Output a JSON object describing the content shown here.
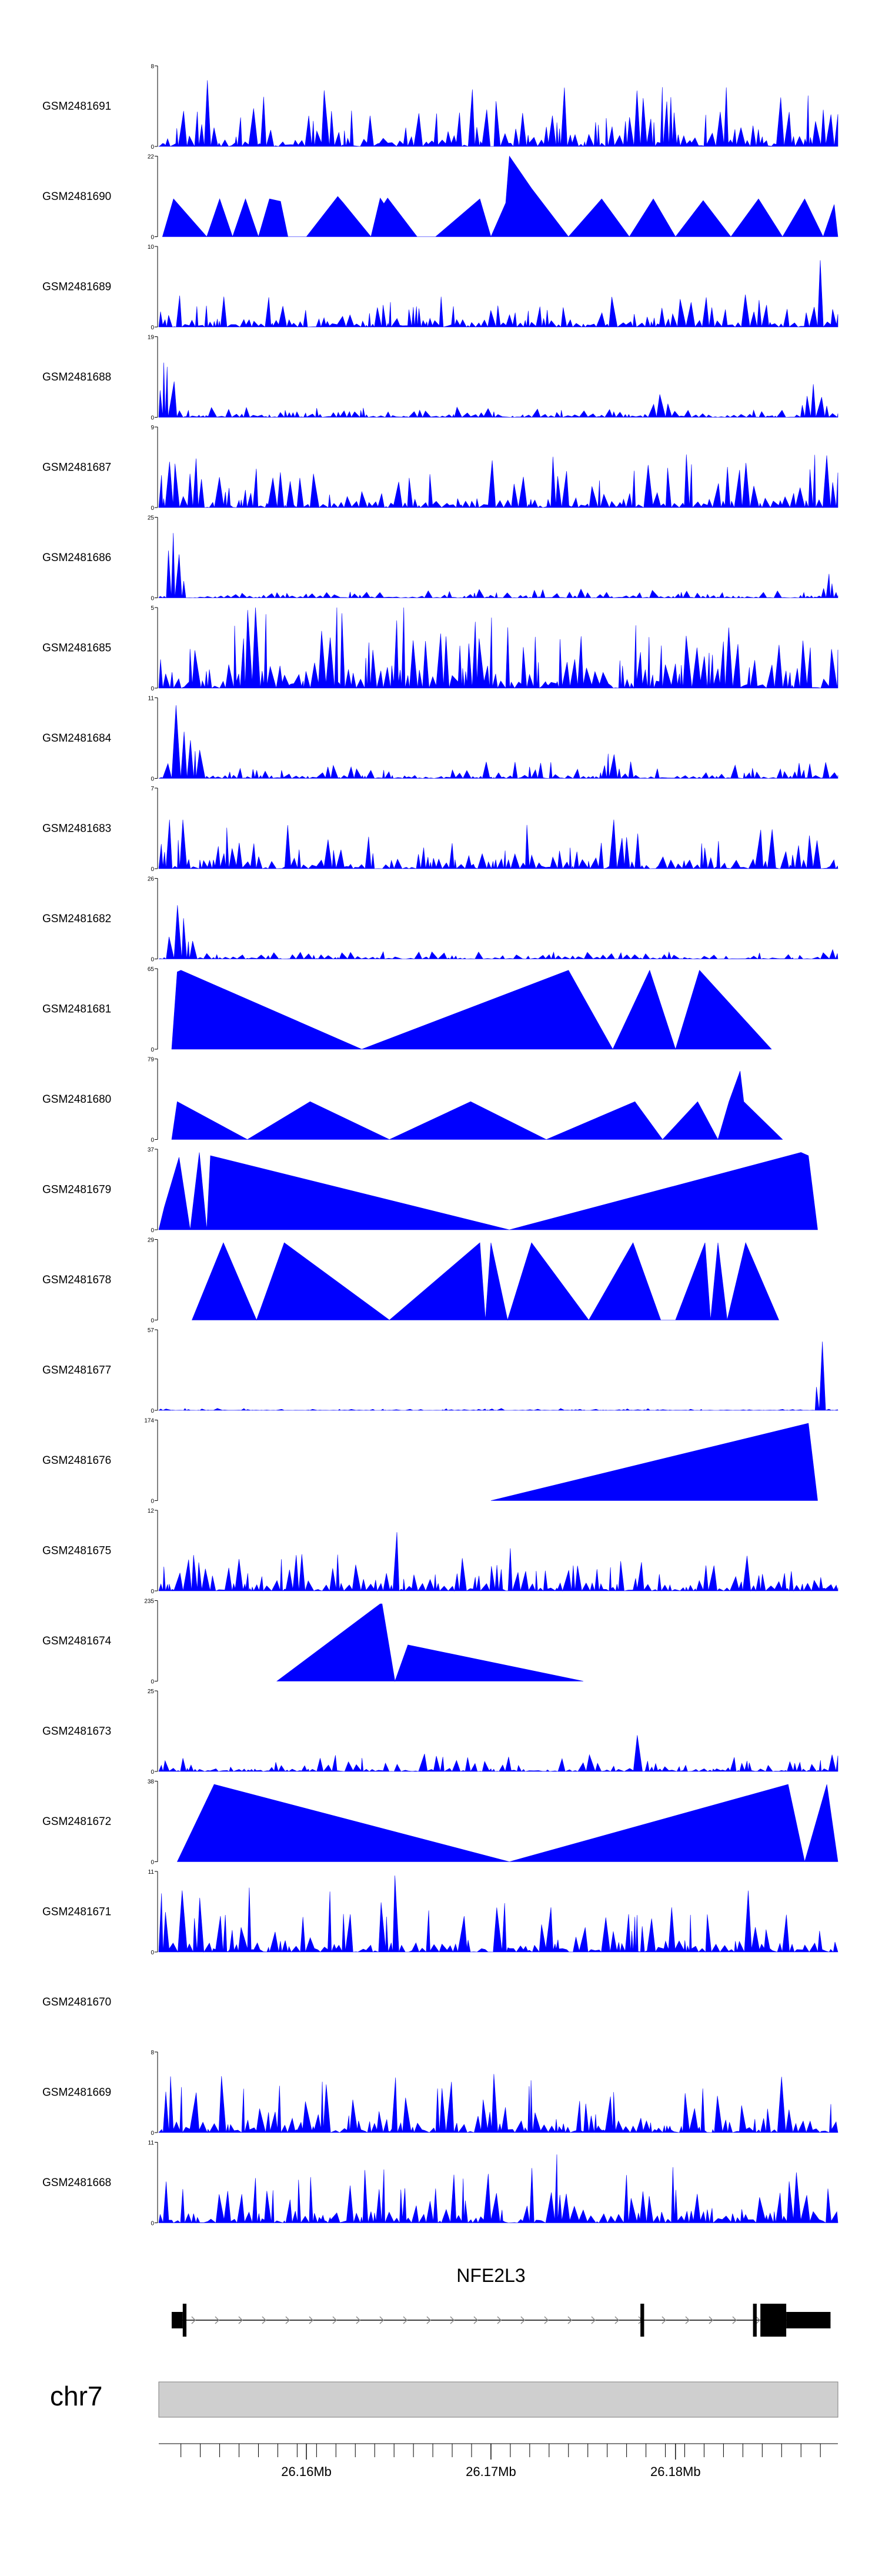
{
  "colors": {
    "signal": "#0000ff",
    "axis": "#000000",
    "gene": "#000000",
    "ideogram_fill": "#cfcfcf",
    "ideogram_stroke": "#7f7f7f",
    "intron_arrow": "#8a8a8a"
  },
  "chart_data": {
    "type": "area",
    "xlim": [
      26152000,
      26188800
    ],
    "tracks": [
      {
        "name": "GSM2481691",
        "ymax": 8,
        "ytick_top": "8",
        "ytick_bottom": "0",
        "pattern": "noise",
        "base": 0.15,
        "amp": 0.6,
        "seed": 11,
        "peaks": [
          [
            26153200,
            0.85,
            300
          ],
          [
            26154600,
            0.95,
            250
          ],
          [
            26178000,
            0.95,
            300
          ],
          [
            26187800,
            0.9,
            300
          ]
        ]
      },
      {
        "name": "GSM2481690",
        "ymax": 22,
        "ytick_top": "22",
        "ytick_bottom": "0",
        "pattern": "points",
        "points": [
          [
            26152200,
            0
          ],
          [
            26152800,
            0.47
          ],
          [
            26154600,
            0
          ],
          [
            26155300,
            0.47
          ],
          [
            26156000,
            0
          ],
          [
            26156700,
            0.47
          ],
          [
            26157400,
            0
          ],
          [
            26158000,
            0.47
          ],
          [
            26158600,
            0.44
          ],
          [
            26159000,
            0
          ],
          [
            26160000,
            0
          ],
          [
            26161700,
            0.5
          ],
          [
            26162000,
            0.42
          ],
          [
            26163500,
            0
          ],
          [
            26164000,
            0.48
          ],
          [
            26164200,
            0.41
          ],
          [
            26164400,
            0.48
          ],
          [
            26166000,
            0
          ],
          [
            26167000,
            0
          ],
          [
            26169400,
            0.47
          ],
          [
            26170000,
            0
          ],
          [
            26170800,
            0.42
          ],
          [
            26171000,
            1.0
          ],
          [
            26172200,
            0.6
          ],
          [
            26174200,
            0
          ],
          [
            26176000,
            0.47
          ],
          [
            26177500,
            0
          ],
          [
            26178800,
            0.47
          ],
          [
            26180000,
            0
          ],
          [
            26181500,
            0.45
          ],
          [
            26183000,
            0
          ],
          [
            26184500,
            0.47
          ],
          [
            26185800,
            0
          ],
          [
            26187000,
            0.47
          ],
          [
            26188000,
            0
          ],
          [
            26188600,
            0.4
          ],
          [
            26188800,
            0
          ]
        ]
      },
      {
        "name": "GSM2481689",
        "ymax": 10,
        "ytick_top": "10",
        "ytick_bottom": "0",
        "pattern": "noise",
        "base": 0.1,
        "amp": 0.35,
        "seed": 23,
        "peaks": [
          [
            26187900,
            0.97,
            300
          ],
          [
            26188400,
            0.5,
            200
          ]
        ]
      },
      {
        "name": "GSM2481688",
        "ymax": 19,
        "ytick_top": "19",
        "ytick_bottom": "0",
        "pattern": "noise",
        "base": 0.04,
        "amp": 0.1,
        "seed": 31,
        "peaks": [
          [
            26152350,
            0.75,
            500
          ],
          [
            26152800,
            0.45,
            300
          ],
          [
            26179200,
            0.25,
            900
          ],
          [
            26187500,
            0.4,
            1000
          ]
        ]
      },
      {
        "name": "GSM2481687",
        "ymax": 9,
        "ytick_top": "9",
        "ytick_bottom": "0",
        "pattern": "noise",
        "base": 0.12,
        "amp": 0.55,
        "seed": 41,
        "peaks": [
          [
            26152700,
            0.8,
            350
          ]
        ]
      },
      {
        "name": "GSM2481686",
        "ymax": 25,
        "ytick_top": "25",
        "ytick_bottom": "0",
        "pattern": "noise",
        "base": 0.03,
        "amp": 0.08,
        "seed": 53,
        "peaks": [
          [
            26152700,
            0.97,
            400
          ],
          [
            26153100,
            0.5,
            400
          ],
          [
            26188300,
            0.3,
            400
          ]
        ]
      },
      {
        "name": "GSM2481685",
        "ymax": 5,
        "ytick_top": "5",
        "ytick_bottom": "0",
        "pattern": "noise",
        "base": 0.3,
        "amp": 0.75,
        "seed": 67,
        "peaks": [
          [
            26170000,
            0.95,
            250
          ],
          [
            26186800,
            0.95,
            250
          ]
        ]
      },
      {
        "name": "GSM2481684",
        "ymax": 11,
        "ytick_top": "11",
        "ytick_bottom": "0",
        "pattern": "noise",
        "base": 0.04,
        "amp": 0.18,
        "seed": 71,
        "peaks": [
          [
            26152900,
            0.95,
            500
          ],
          [
            26153500,
            0.75,
            500
          ],
          [
            26154100,
            0.55,
            300
          ],
          [
            26176500,
            0.35,
            600
          ],
          [
            26188300,
            0.3,
            400
          ]
        ]
      },
      {
        "name": "GSM2481683",
        "ymax": 7,
        "ytick_top": "7",
        "ytick_bottom": "0",
        "pattern": "noise",
        "base": 0.12,
        "amp": 0.5,
        "seed": 83,
        "peaks": [
          [
            26153400,
            0.95,
            250
          ]
        ]
      },
      {
        "name": "GSM2481682",
        "ymax": 26,
        "ytick_top": "26",
        "ytick_bottom": "0",
        "pattern": "noise",
        "base": 0.02,
        "amp": 0.07,
        "seed": 97,
        "peaks": [
          [
            26152900,
            0.85,
            500
          ],
          [
            26153300,
            0.55,
            500
          ],
          [
            26153800,
            0.2,
            400
          ],
          [
            26188300,
            0.28,
            350
          ]
        ]
      },
      {
        "name": "GSM2481681",
        "ymax": 65,
        "ytick_top": "65",
        "ytick_bottom": "0",
        "pattern": "points",
        "points": [
          [
            26152700,
            0
          ],
          [
            26153000,
            0.96
          ],
          [
            26153200,
            0.98
          ],
          [
            26163000,
            0
          ],
          [
            26174200,
            0.98
          ],
          [
            26176600,
            0
          ],
          [
            26178600,
            0.98
          ],
          [
            26180000,
            0
          ],
          [
            26181300,
            0.98
          ],
          [
            26185200,
            0
          ]
        ]
      },
      {
        "name": "GSM2481680",
        "ymax": 79,
        "ytick_top": "79",
        "ytick_bottom": "0",
        "pattern": "points",
        "points": [
          [
            26152700,
            0
          ],
          [
            26153000,
            0.47
          ],
          [
            26156800,
            0
          ],
          [
            26160200,
            0.47
          ],
          [
            26164500,
            0
          ],
          [
            26168900,
            0.47
          ],
          [
            26173000,
            0
          ],
          [
            26177800,
            0.47
          ],
          [
            26179300,
            0
          ],
          [
            26181200,
            0.47
          ],
          [
            26182300,
            0
          ],
          [
            26182900,
            0.47
          ],
          [
            26183500,
            0.85
          ],
          [
            26183700,
            0.47
          ],
          [
            26185800,
            0
          ]
        ]
      },
      {
        "name": "GSM2481679",
        "ymax": 37,
        "ytick_top": "37",
        "ytick_bottom": "0",
        "pattern": "points",
        "points": [
          [
            26152000,
            0
          ],
          [
            26152300,
            0.28
          ],
          [
            26153100,
            0.9
          ],
          [
            26153700,
            0
          ],
          [
            26154200,
            0.96
          ],
          [
            26154600,
            0
          ],
          [
            26154800,
            0.92
          ],
          [
            26171000,
            0
          ],
          [
            26186800,
            0.96
          ],
          [
            26187200,
            0.92
          ],
          [
            26187700,
            0
          ]
        ]
      },
      {
        "name": "GSM2481678",
        "ymax": 29,
        "ytick_top": "29",
        "ytick_bottom": "0",
        "pattern": "points",
        "points": [
          [
            26153800,
            0
          ],
          [
            26155500,
            0.96
          ],
          [
            26157300,
            0
          ],
          [
            26158800,
            0.96
          ],
          [
            26164500,
            0
          ],
          [
            26169400,
            0.96
          ],
          [
            26169700,
            0
          ],
          [
            26170000,
            0.96
          ],
          [
            26170900,
            0
          ],
          [
            26172200,
            0.96
          ],
          [
            26175300,
            0
          ],
          [
            26177700,
            0.96
          ],
          [
            26179200,
            0
          ],
          [
            26180000,
            0
          ],
          [
            26181600,
            0.96
          ],
          [
            26181900,
            0
          ],
          [
            26182300,
            0.96
          ],
          [
            26182800,
            0
          ],
          [
            26183800,
            0.96
          ],
          [
            26185600,
            0
          ]
        ]
      },
      {
        "name": "GSM2481677",
        "ymax": 57,
        "ytick_top": "57",
        "ytick_bottom": "0",
        "pattern": "noise",
        "base": 0.005,
        "amp": 0.02,
        "seed": 101,
        "peaks": [
          [
            26188000,
            0.95,
            300
          ],
          [
            26187800,
            0.5,
            350
          ]
        ]
      },
      {
        "name": "GSM2481676",
        "ymax": 174,
        "ytick_top": "174",
        "ytick_bottom": "0",
        "pattern": "points",
        "points": [
          [
            26170000,
            0
          ],
          [
            26187200,
            0.96
          ],
          [
            26187700,
            0
          ]
        ]
      },
      {
        "name": "GSM2481675",
        "ymax": 12,
        "ytick_top": "12",
        "ytick_bottom": "0",
        "pattern": "noise",
        "base": 0.1,
        "amp": 0.45,
        "seed": 113,
        "peaks": [
          [
            26164900,
            0.7,
            200
          ],
          [
            26187700,
            0.92,
            200
          ]
        ]
      },
      {
        "name": "GSM2481674",
        "ymax": 235,
        "ytick_top": "235",
        "ytick_bottom": "0",
        "pattern": "points",
        "points": [
          [
            26158400,
            0
          ],
          [
            26164000,
            0.96
          ],
          [
            26164100,
            0.96
          ],
          [
            26164800,
            0
          ],
          [
            26165500,
            0.45
          ],
          [
            26175000,
            0
          ]
        ]
      },
      {
        "name": "GSM2481673",
        "ymax": 25,
        "ytick_top": "25",
        "ytick_bottom": "0",
        "pattern": "noise",
        "base": 0.04,
        "amp": 0.2,
        "seed": 127,
        "peaks": [
          [
            26177800,
            0.96,
            220
          ],
          [
            26188300,
            0.6,
            250
          ]
        ]
      },
      {
        "name": "GSM2481672",
        "ymax": 38,
        "ytick_top": "38",
        "ytick_bottom": "0",
        "pattern": "points",
        "points": [
          [
            26153000,
            0
          ],
          [
            26155000,
            0.96
          ],
          [
            26171000,
            0
          ],
          [
            26186100,
            0.96
          ],
          [
            26187000,
            0
          ],
          [
            26188200,
            0.96
          ],
          [
            26189100,
            0
          ]
        ]
      },
      {
        "name": "GSM2481671",
        "ymax": 11,
        "ytick_top": "11",
        "ytick_bottom": "0",
        "pattern": "noise",
        "base": 0.15,
        "amp": 0.65,
        "seed": 139,
        "peaks": [
          [
            26164800,
            0.96,
            200
          ]
        ]
      },
      {
        "name": "GSM2481670",
        "ymax": 0,
        "ytick_top": "",
        "ytick_bottom": "",
        "pattern": "empty"
      },
      {
        "name": "GSM2481669",
        "ymax": 8,
        "ytick_top": "8",
        "ytick_bottom": "0",
        "pattern": "noise",
        "base": 0.15,
        "amp": 0.6,
        "seed": 151,
        "peaks": [
          [
            26152700,
            0.9,
            250
          ]
        ]
      },
      {
        "name": "GSM2481668",
        "ymax": 11,
        "ytick_top": "11",
        "ytick_bottom": "0",
        "pattern": "noise",
        "base": 0.15,
        "amp": 0.55,
        "seed": 163,
        "peaks": [
          [
            26173600,
            0.96,
            200
          ]
        ]
      }
    ],
    "gene": {
      "name": "NFE2L3",
      "strand": "+",
      "start": 26152700,
      "end": 26188400,
      "exons": [
        {
          "start": 26152700,
          "end": 26153300,
          "h": 0.5
        },
        {
          "start": 26153300,
          "end": 26153500,
          "h": 1.0
        },
        {
          "start": 26178100,
          "end": 26178300,
          "h": 1.0
        },
        {
          "start": 26184200,
          "end": 26184400,
          "h": 1.0
        },
        {
          "start": 26184600,
          "end": 26186000,
          "h": 1.0
        },
        {
          "start": 26186000,
          "end": 26188400,
          "h": 0.5
        }
      ]
    },
    "chromosome": "chr7",
    "axis_ticks": [
      26153200,
      26154250,
      26155300,
      26156350,
      26157400,
      26158450,
      26159500,
      26160550,
      26161600,
      26162650,
      26163700,
      26164750,
      26165800,
      26166850,
      26167900,
      26168950,
      26170000,
      26171050,
      26172100,
      26173150,
      26174200,
      26175250,
      26176300,
      26177350,
      26178400,
      26179450,
      26180500,
      26181550,
      26182600,
      26183650,
      26184700,
      26185750,
      26186800,
      26187850,
      26188900
    ],
    "axis_labels": [
      {
        "pos": 26160000,
        "text": "26.16Mb"
      },
      {
        "pos": 26170000,
        "text": "26.17Mb"
      },
      {
        "pos": 26180000,
        "text": "26.18Mb"
      }
    ]
  }
}
